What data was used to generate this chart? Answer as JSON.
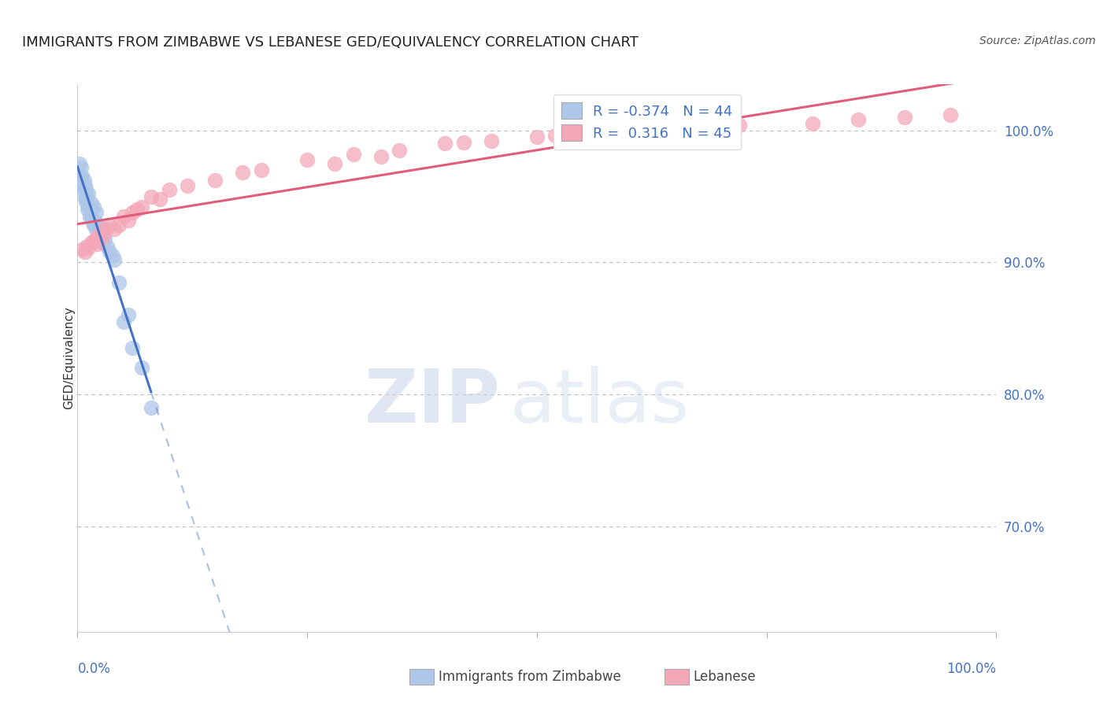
{
  "title": "IMMIGRANTS FROM ZIMBABWE VS LEBANESE GED/EQUIVALENCY CORRELATION CHART",
  "source": "Source: ZipAtlas.com",
  "ylabel": "GED/Equivalency",
  "right_yticks": [
    70.0,
    80.0,
    90.0,
    100.0
  ],
  "xlim": [
    0.0,
    100.0
  ],
  "ylim": [
    62.0,
    103.5
  ],
  "legend_R1": "-0.374",
  "legend_N1": "44",
  "legend_R2": "0.316",
  "legend_N2": "45",
  "blue_scatter": [
    [
      0.5,
      96.5
    ],
    [
      1.0,
      94.8
    ],
    [
      1.2,
      95.2
    ],
    [
      1.5,
      94.5
    ],
    [
      0.8,
      95.8
    ],
    [
      1.3,
      93.5
    ],
    [
      2.0,
      93.8
    ],
    [
      1.8,
      94.2
    ],
    [
      0.3,
      96.0
    ],
    [
      0.9,
      95.0
    ],
    [
      1.1,
      94.0
    ],
    [
      0.4,
      97.2
    ],
    [
      1.6,
      93.2
    ],
    [
      2.5,
      92.5
    ],
    [
      3.0,
      91.8
    ],
    [
      0.6,
      95.5
    ],
    [
      0.7,
      96.2
    ],
    [
      1.4,
      93.8
    ],
    [
      2.2,
      92.8
    ],
    [
      0.2,
      97.5
    ],
    [
      1.7,
      93.0
    ],
    [
      2.8,
      91.5
    ],
    [
      3.5,
      90.8
    ],
    [
      4.0,
      90.2
    ],
    [
      0.8,
      94.8
    ],
    [
      1.0,
      94.5
    ],
    [
      1.5,
      93.5
    ],
    [
      2.0,
      93.0
    ],
    [
      0.5,
      95.8
    ],
    [
      0.3,
      96.5
    ],
    [
      1.2,
      94.2
    ],
    [
      0.9,
      95.5
    ],
    [
      1.8,
      92.8
    ],
    [
      3.2,
      91.2
    ],
    [
      5.0,
      85.5
    ],
    [
      6.0,
      83.5
    ],
    [
      7.0,
      82.0
    ],
    [
      2.5,
      91.8
    ],
    [
      2.0,
      92.5
    ],
    [
      1.5,
      94.0
    ],
    [
      3.8,
      90.5
    ],
    [
      4.5,
      88.5
    ],
    [
      5.5,
      86.0
    ],
    [
      8.0,
      79.0
    ]
  ],
  "pink_scatter": [
    [
      0.5,
      91.0
    ],
    [
      1.5,
      91.5
    ],
    [
      2.0,
      91.8
    ],
    [
      2.5,
      92.2
    ],
    [
      3.0,
      92.5
    ],
    [
      5.0,
      93.5
    ],
    [
      8.0,
      95.0
    ],
    [
      10.0,
      95.5
    ],
    [
      15.0,
      96.2
    ],
    [
      20.0,
      97.0
    ],
    [
      25.0,
      97.8
    ],
    [
      30.0,
      98.2
    ],
    [
      35.0,
      98.5
    ],
    [
      40.0,
      99.0
    ],
    [
      45.0,
      99.2
    ],
    [
      50.0,
      99.5
    ],
    [
      55.0,
      99.8
    ],
    [
      60.0,
      100.0
    ],
    [
      70.0,
      100.2
    ],
    [
      80.0,
      100.5
    ],
    [
      1.0,
      91.2
    ],
    [
      1.8,
      91.6
    ],
    [
      3.5,
      92.8
    ],
    [
      6.0,
      93.8
    ],
    [
      12.0,
      95.8
    ],
    [
      2.2,
      91.4
    ],
    [
      4.0,
      92.5
    ],
    [
      7.0,
      94.2
    ],
    [
      0.8,
      90.8
    ],
    [
      1.2,
      91.1
    ],
    [
      2.8,
      92.0
    ],
    [
      5.5,
      93.2
    ],
    [
      9.0,
      94.8
    ],
    [
      18.0,
      96.8
    ],
    [
      28.0,
      97.5
    ],
    [
      33.0,
      98.0
    ],
    [
      42.0,
      99.1
    ],
    [
      52.0,
      99.6
    ],
    [
      62.0,
      100.1
    ],
    [
      72.0,
      100.4
    ],
    [
      85.0,
      100.8
    ],
    [
      90.0,
      101.0
    ],
    [
      95.0,
      101.2
    ],
    [
      4.5,
      92.8
    ],
    [
      6.5,
      94.0
    ]
  ],
  "blue_line_color": "#4472c4",
  "pink_line_color": "#e05c7a",
  "blue_dot_color": "#aec6e8",
  "pink_dot_color": "#f4a7b9",
  "grid_color": "#bbbbbb",
  "background_color": "#ffffff",
  "watermark_zip": "ZIP",
  "watermark_atlas": "atlas",
  "title_color": "#222222",
  "axis_label_color": "#4472c4",
  "source_color": "#555555"
}
